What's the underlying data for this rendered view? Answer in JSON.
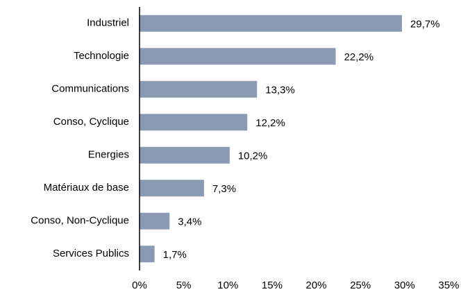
{
  "chart_data": {
    "type": "bar",
    "orientation": "horizontal",
    "categories": [
      "Industriel",
      "Technologie",
      "Communications",
      "Conso, Cyclique",
      "Energies",
      "Matériaux de base",
      "Conso, Non-Cyclique",
      "Services Publics"
    ],
    "values": [
      29.7,
      22.2,
      13.3,
      12.2,
      10.2,
      7.3,
      3.4,
      1.7
    ],
    "value_labels": [
      "29,7%",
      "22,2%",
      "13,3%",
      "12,2%",
      "10,2%",
      "7,3%",
      "3,4%",
      "1,7%"
    ],
    "color": "#8a9ab5",
    "xlim": [
      0,
      35
    ],
    "xticks": [
      {
        "value": 0,
        "label": "0%"
      },
      {
        "value": 5,
        "label": "5%"
      },
      {
        "value": 10,
        "label": "10%"
      },
      {
        "value": 15,
        "label": "15%"
      },
      {
        "value": 20,
        "label": "20%"
      },
      {
        "value": 25,
        "label": "25%"
      },
      {
        "value": 30,
        "label": "30%"
      },
      {
        "value": 35,
        "label": "35%"
      }
    ],
    "grid": false
  }
}
